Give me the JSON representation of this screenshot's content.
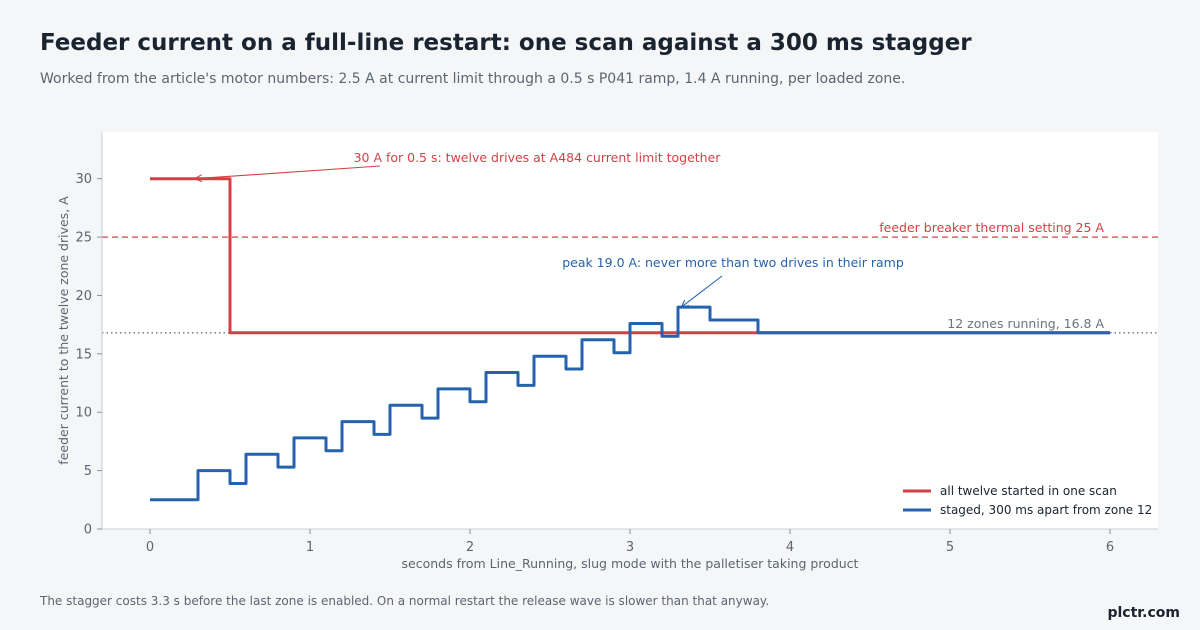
{
  "title": "Feeder current on a full-line restart: one scan against a 300 ms stagger",
  "subtitle": "Worked from the article's motor numbers: 2.5 A at current limit through a 0.5 s P041 ramp, 1.4 A running, per loaded zone.",
  "footnote": "The stagger costs 3.3 s before the last zone is enabled. On a normal restart the release wave is slower than that anyway.",
  "brand": "plctr.com",
  "chart_data": {
    "type": "line",
    "title": "Feeder current on a full-line restart: one scan against a 300 ms stagger",
    "xlabel": "seconds from Line_Running, slug mode with the palletiser taking product",
    "ylabel": "feeder current to the twelve zone drives, A",
    "xlim": [
      -0.3,
      6.3
    ],
    "ylim": [
      0,
      34
    ],
    "xticks": [
      0,
      1,
      2,
      3,
      4,
      5,
      6
    ],
    "yticks": [
      0,
      5,
      10,
      15,
      20,
      25,
      30
    ],
    "grid": false,
    "legend_position": "lower-right",
    "colors": {
      "all": "#d64045",
      "staged": "#2563ad",
      "reference": "#6b737c"
    },
    "series": [
      {
        "name": "all twelve started in one scan",
        "x": [
          0,
          0.5,
          0.5,
          6
        ],
        "y": [
          30,
          30,
          16.8,
          16.8
        ]
      },
      {
        "name": "staged, 300 ms apart from zone 12",
        "x": [
          0,
          0.3,
          0.3,
          0.5,
          0.5,
          0.6,
          0.6,
          0.8,
          0.8,
          0.9,
          0.9,
          1.1,
          1.1,
          1.2,
          1.2,
          1.4,
          1.4,
          1.5,
          1.5,
          1.7,
          1.7,
          1.8,
          1.8,
          2.0,
          2.0,
          2.1,
          2.1,
          2.3,
          2.3,
          2.4,
          2.4,
          2.6,
          2.6,
          2.7,
          2.7,
          2.9,
          2.9,
          3.0,
          3.0,
          3.2,
          3.2,
          3.3,
          3.3,
          3.5,
          3.5,
          3.8,
          3.8,
          6
        ],
        "y": [
          2.5,
          2.5,
          5.0,
          5.0,
          3.9,
          3.9,
          6.4,
          6.4,
          5.3,
          5.3,
          7.8,
          7.8,
          6.7,
          6.7,
          9.2,
          9.2,
          8.1,
          8.1,
          10.6,
          10.6,
          9.5,
          9.5,
          12.0,
          12.0,
          10.9,
          10.9,
          13.4,
          13.4,
          12.3,
          12.3,
          14.8,
          14.8,
          13.7,
          13.7,
          16.2,
          16.2,
          15.1,
          15.1,
          17.6,
          17.6,
          16.5,
          16.5,
          19.0,
          19.0,
          17.9,
          17.9,
          16.8,
          16.8
        ]
      }
    ],
    "reference_lines": [
      {
        "y": 25,
        "label": "feeder breaker thermal setting 25 A",
        "style": "dashed",
        "color": "#d64045"
      },
      {
        "y": 16.8,
        "label": "12 zones running, 16.8 A",
        "style": "dotted",
        "color": "#6b737c"
      }
    ],
    "annotations": [
      {
        "text": "30 A for 0.5 s: twelve drives at A484 current limit together",
        "x": 0.28,
        "y": 30,
        "color": "#d64045"
      },
      {
        "text": "peak 19.0 A: never more than two drives in their ramp",
        "x": 3.32,
        "y": 19.0,
        "color": "#2563ad"
      }
    ]
  }
}
